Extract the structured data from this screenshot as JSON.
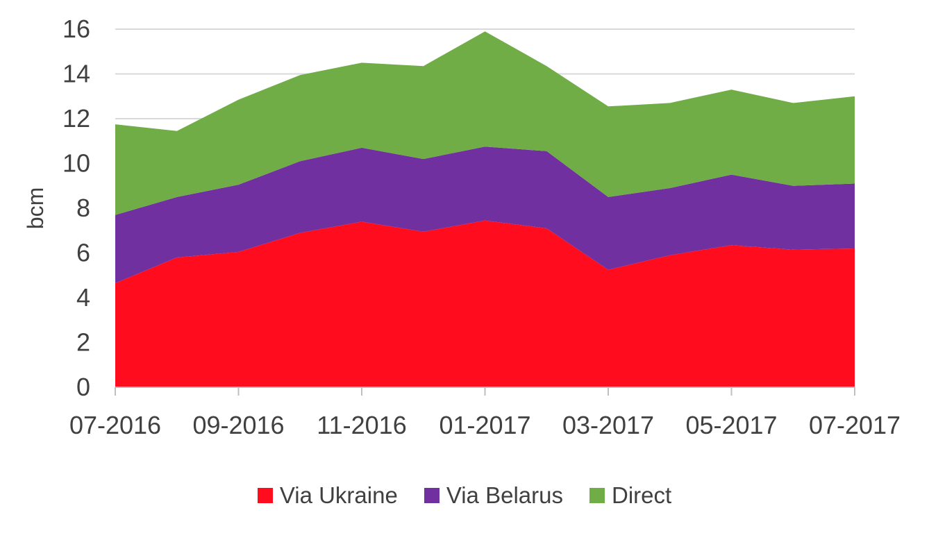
{
  "chart_data": {
    "type": "area",
    "stacked": true,
    "x": [
      "07-2016",
      "08-2016",
      "09-2016",
      "10-2016",
      "11-2016",
      "12-2016",
      "01-2017",
      "02-2017",
      "03-2017",
      "04-2017",
      "05-2017",
      "06-2017",
      "07-2017"
    ],
    "x_tick_labels": [
      "07-2016",
      "09-2016",
      "11-2016",
      "01-2017",
      "03-2017",
      "05-2017",
      "07-2017"
    ],
    "series": [
      {
        "name": "Via Ukraine",
        "color": "#ff0d1f",
        "values": [
          4.65,
          5.8,
          6.05,
          6.9,
          7.4,
          6.95,
          7.45,
          7.1,
          5.25,
          5.9,
          6.35,
          6.15,
          6.2
        ]
      },
      {
        "name": "Via Belarus",
        "color": "#7030a0",
        "values": [
          3.05,
          2.7,
          3.0,
          3.2,
          3.3,
          3.25,
          3.3,
          3.45,
          3.25,
          3.0,
          3.15,
          2.85,
          2.9
        ]
      },
      {
        "name": "Direct",
        "color": "#70ad47",
        "values": [
          4.05,
          2.95,
          3.8,
          3.85,
          3.8,
          4.15,
          5.15,
          3.8,
          4.05,
          3.8,
          3.8,
          3.7,
          3.9
        ]
      }
    ],
    "ylabel": "bcm",
    "ylim": [
      0,
      16
    ],
    "yticks": [
      0,
      2,
      4,
      6,
      8,
      10,
      12,
      14,
      16
    ],
    "grid": "horizontal",
    "legend_position": "bottom"
  }
}
